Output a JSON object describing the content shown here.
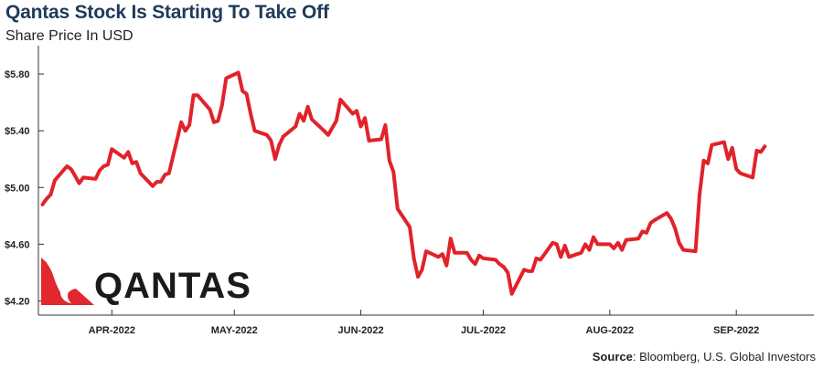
{
  "header": {
    "title": "Qantas Stock Is Starting To Take Off",
    "subtitle": "Share Price In USD"
  },
  "footer": {
    "source_label": "Source",
    "source_text": ": Bloomberg, U.S. Global Investors"
  },
  "logo": {
    "text": "QANTAS",
    "accent_color": "#e0282e",
    "text_color": "#1a1a1a"
  },
  "colors": {
    "line": "#e0232a",
    "axis": "#333333",
    "title": "#1f3a5a"
  },
  "chart_data": {
    "type": "line",
    "title": "Qantas Stock Is Starting To Take Off",
    "subtitle": "Share Price In USD",
    "xlabel": "",
    "ylabel": "",
    "ylim": [
      4.1,
      6.0
    ],
    "y_ticks": [
      {
        "value": 4.2,
        "label": "$4.20"
      },
      {
        "value": 4.6,
        "label": "$4.60"
      },
      {
        "value": 5.0,
        "label": "$5.00"
      },
      {
        "value": 5.4,
        "label": "$5.40"
      },
      {
        "value": 5.8,
        "label": "$5.80"
      }
    ],
    "x_range": [
      "2022-03-14",
      "2022-09-20"
    ],
    "x_ticks": [
      {
        "date": "2022-04-01",
        "label": "APR-2022"
      },
      {
        "date": "2022-05-01",
        "label": "MAY-2022"
      },
      {
        "date": "2022-06-01",
        "label": "JUN-2022"
      },
      {
        "date": "2022-07-01",
        "label": "JUL-2022"
      },
      {
        "date": "2022-08-01",
        "label": "AUG-2022"
      },
      {
        "date": "2022-09-01",
        "label": "SEP-2022"
      }
    ],
    "grid": false,
    "series": [
      {
        "color": "#e0232a",
        "points": [
          [
            "2022-03-15",
            4.88
          ],
          [
            "2022-03-16",
            4.92
          ],
          [
            "2022-03-17",
            4.95
          ],
          [
            "2022-03-18",
            5.05
          ],
          [
            "2022-03-21",
            5.15
          ],
          [
            "2022-03-22",
            5.13
          ],
          [
            "2022-03-23",
            5.08
          ],
          [
            "2022-03-24",
            5.03
          ],
          [
            "2022-03-25",
            5.07
          ],
          [
            "2022-03-28",
            5.06
          ],
          [
            "2022-03-29",
            5.12
          ],
          [
            "2022-03-30",
            5.15
          ],
          [
            "2022-03-31",
            5.16
          ],
          [
            "2022-04-01",
            5.27
          ],
          [
            "2022-04-04",
            5.21
          ],
          [
            "2022-04-05",
            5.25
          ],
          [
            "2022-04-06",
            5.17
          ],
          [
            "2022-04-07",
            5.18
          ],
          [
            "2022-04-08",
            5.1
          ],
          [
            "2022-04-11",
            5.01
          ],
          [
            "2022-04-12",
            5.04
          ],
          [
            "2022-04-13",
            5.04
          ],
          [
            "2022-04-14",
            5.09
          ],
          [
            "2022-04-15",
            5.1
          ],
          [
            "2022-04-18",
            5.46
          ],
          [
            "2022-04-19",
            5.4
          ],
          [
            "2022-04-20",
            5.44
          ],
          [
            "2022-04-21",
            5.65
          ],
          [
            "2022-04-22",
            5.65
          ],
          [
            "2022-04-25",
            5.55
          ],
          [
            "2022-04-26",
            5.46
          ],
          [
            "2022-04-27",
            5.47
          ],
          [
            "2022-04-28",
            5.58
          ],
          [
            "2022-04-29",
            5.77
          ],
          [
            "2022-05-02",
            5.81
          ],
          [
            "2022-05-03",
            5.68
          ],
          [
            "2022-05-04",
            5.66
          ],
          [
            "2022-05-05",
            5.52
          ],
          [
            "2022-05-06",
            5.4
          ],
          [
            "2022-05-09",
            5.37
          ],
          [
            "2022-05-10",
            5.33
          ],
          [
            "2022-05-11",
            5.2
          ],
          [
            "2022-05-12",
            5.3
          ],
          [
            "2022-05-13",
            5.36
          ],
          [
            "2022-05-16",
            5.43
          ],
          [
            "2022-05-17",
            5.52
          ],
          [
            "2022-05-18",
            5.47
          ],
          [
            "2022-05-19",
            5.57
          ],
          [
            "2022-05-20",
            5.48
          ],
          [
            "2022-05-23",
            5.4
          ],
          [
            "2022-05-24",
            5.37
          ],
          [
            "2022-05-25",
            5.42
          ],
          [
            "2022-05-26",
            5.47
          ],
          [
            "2022-05-27",
            5.62
          ],
          [
            "2022-05-30",
            5.52
          ],
          [
            "2022-05-31",
            5.54
          ],
          [
            "2022-06-01",
            5.43
          ],
          [
            "2022-06-02",
            5.49
          ],
          [
            "2022-06-03",
            5.33
          ],
          [
            "2022-06-06",
            5.34
          ],
          [
            "2022-06-07",
            5.44
          ],
          [
            "2022-06-08",
            5.19
          ],
          [
            "2022-06-09",
            5.11
          ],
          [
            "2022-06-10",
            4.85
          ],
          [
            "2022-06-13",
            4.72
          ],
          [
            "2022-06-14",
            4.5
          ],
          [
            "2022-06-15",
            4.37
          ],
          [
            "2022-06-16",
            4.42
          ],
          [
            "2022-06-17",
            4.55
          ],
          [
            "2022-06-20",
            4.51
          ],
          [
            "2022-06-21",
            4.53
          ],
          [
            "2022-06-22",
            4.45
          ],
          [
            "2022-06-23",
            4.64
          ],
          [
            "2022-06-24",
            4.54
          ],
          [
            "2022-06-27",
            4.54
          ],
          [
            "2022-06-28",
            4.49
          ],
          [
            "2022-06-29",
            4.46
          ],
          [
            "2022-06-30",
            4.52
          ],
          [
            "2022-07-01",
            4.5
          ],
          [
            "2022-07-04",
            4.49
          ],
          [
            "2022-07-05",
            4.46
          ],
          [
            "2022-07-06",
            4.44
          ],
          [
            "2022-07-07",
            4.4
          ],
          [
            "2022-07-08",
            4.25
          ],
          [
            "2022-07-11",
            4.42
          ],
          [
            "2022-07-12",
            4.41
          ],
          [
            "2022-07-13",
            4.41
          ],
          [
            "2022-07-14",
            4.5
          ],
          [
            "2022-07-15",
            4.49
          ],
          [
            "2022-07-18",
            4.61
          ],
          [
            "2022-07-19",
            4.6
          ],
          [
            "2022-07-20",
            4.51
          ],
          [
            "2022-07-21",
            4.59
          ],
          [
            "2022-07-22",
            4.51
          ],
          [
            "2022-07-25",
            4.54
          ],
          [
            "2022-07-26",
            4.6
          ],
          [
            "2022-07-27",
            4.56
          ],
          [
            "2022-07-28",
            4.65
          ],
          [
            "2022-07-29",
            4.6
          ],
          [
            "2022-08-01",
            4.6
          ],
          [
            "2022-08-02",
            4.57
          ],
          [
            "2022-08-03",
            4.61
          ],
          [
            "2022-08-04",
            4.56
          ],
          [
            "2022-08-05",
            4.63
          ],
          [
            "2022-08-08",
            4.64
          ],
          [
            "2022-08-09",
            4.69
          ],
          [
            "2022-08-10",
            4.68
          ],
          [
            "2022-08-11",
            4.75
          ],
          [
            "2022-08-12",
            4.77
          ],
          [
            "2022-08-15",
            4.82
          ],
          [
            "2022-08-16",
            4.78
          ],
          [
            "2022-08-17",
            4.71
          ],
          [
            "2022-08-18",
            4.61
          ],
          [
            "2022-08-19",
            4.56
          ],
          [
            "2022-08-22",
            4.55
          ],
          [
            "2022-08-23",
            4.95
          ],
          [
            "2022-08-24",
            5.19
          ],
          [
            "2022-08-25",
            5.17
          ],
          [
            "2022-08-26",
            5.3
          ],
          [
            "2022-08-29",
            5.32
          ],
          [
            "2022-08-30",
            5.2
          ],
          [
            "2022-08-31",
            5.28
          ],
          [
            "2022-09-01",
            5.13
          ],
          [
            "2022-09-02",
            5.1
          ],
          [
            "2022-09-05",
            5.07
          ],
          [
            "2022-09-06",
            5.26
          ],
          [
            "2022-09-07",
            5.25
          ],
          [
            "2022-09-08",
            5.29
          ]
        ]
      }
    ]
  }
}
